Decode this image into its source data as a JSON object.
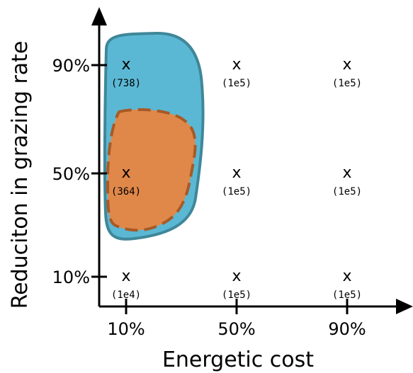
{
  "chart_data": {
    "type": "scatter",
    "xlabel": "Energetic cost",
    "ylabel": "Reduciton in grazing rate",
    "x_ticks": [
      "10%",
      "50%",
      "90%"
    ],
    "y_ticks": [
      "10%",
      "50%",
      "90%"
    ],
    "marker": "x",
    "points": [
      {
        "x": "10%",
        "y": "90%",
        "label": "(738)"
      },
      {
        "x": "50%",
        "y": "90%",
        "label": "(1e5)"
      },
      {
        "x": "90%",
        "y": "90%",
        "label": "(1e5)"
      },
      {
        "x": "10%",
        "y": "50%",
        "label": "(364)"
      },
      {
        "x": "50%",
        "y": "50%",
        "label": "(1e5)"
      },
      {
        "x": "90%",
        "y": "50%",
        "label": "(1e5)"
      },
      {
        "x": "10%",
        "y": "10%",
        "label": "(1e4)"
      },
      {
        "x": "50%",
        "y": "10%",
        "label": "(1e5)"
      },
      {
        "x": "90%",
        "y": "10%",
        "label": "(1e5)"
      }
    ],
    "regions": [
      {
        "fill": "#5bb8d4",
        "stroke": "#3f8799",
        "style": "solid"
      },
      {
        "fill": "#e0884a",
        "stroke": "#a85a26",
        "style": "dashed"
      }
    ],
    "grid": false,
    "legend": "none"
  }
}
